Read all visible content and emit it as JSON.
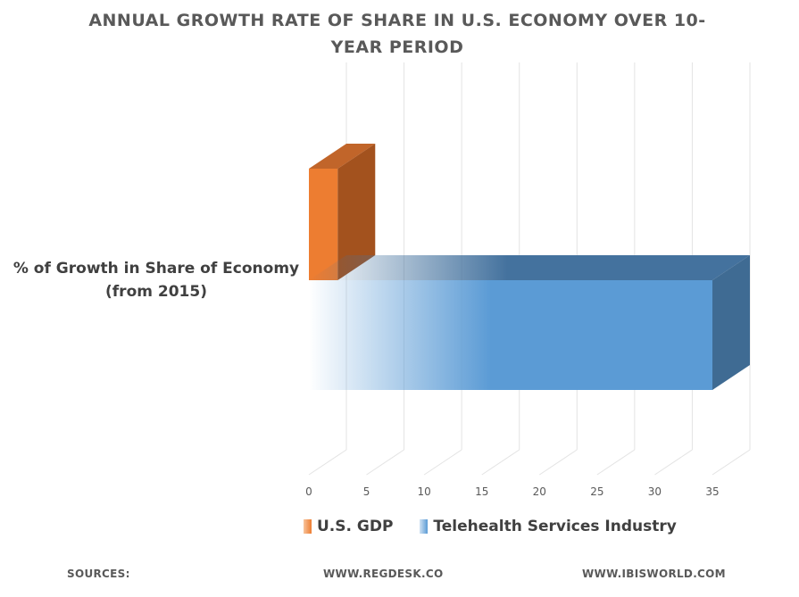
{
  "chart_data": {
    "type": "bar",
    "orientation": "horizontal",
    "style": "3d",
    "title": "ANNUAL GROWTH RATE OF SHARE IN U.S. ECONOMY OVER 10-YEAR PERIOD",
    "categories": [
      "% of Growth in Share of Economy (from 2015)"
    ],
    "series": [
      {
        "name": "U.S. GDP",
        "values": [
          2.5
        ],
        "color": "#ed7d31"
      },
      {
        "name": "Telehealth Services Industry",
        "values": [
          35
        ],
        "color": "#5b9bd5"
      }
    ],
    "xlim": [
      0,
      35
    ],
    "xticks": [
      "0",
      "5",
      "10",
      "15",
      "20",
      "25",
      "30",
      "35"
    ],
    "grid": true,
    "legend_position": "bottom"
  },
  "footer": {
    "sources_label": "SOURCES:",
    "source_1": "WWW.REGDESK.CO",
    "source_2": "WWW.IBISWORLD.COM"
  }
}
